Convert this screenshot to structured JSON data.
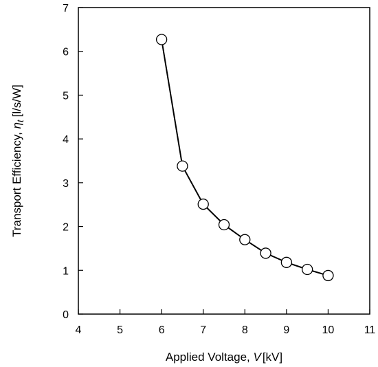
{
  "chart_data": {
    "type": "line",
    "title": "",
    "xlabel": {
      "prefix": "Applied Voltage, ",
      "symbol": "V",
      "unit": "[kV]"
    },
    "ylabel": {
      "prefix": "Transport Efficiency, ",
      "symbol": "η",
      "subscript": "t",
      "unit": "[l/s/W]"
    },
    "xlim": [
      4,
      11
    ],
    "ylim": [
      0,
      7
    ],
    "xticks": [
      "4",
      "5",
      "6",
      "7",
      "8",
      "9",
      "10",
      "11"
    ],
    "yticks": [
      "0",
      "1",
      "2",
      "3",
      "4",
      "5",
      "6",
      "7"
    ],
    "grid": false,
    "marker": "open-circle",
    "line_color": "#000000",
    "series": [
      {
        "x": [
          6.0,
          6.5,
          7.0,
          7.5,
          8.0,
          8.5,
          9.0,
          9.5,
          10.0
        ],
        "y": [
          6.27,
          3.38,
          2.51,
          2.04,
          1.7,
          1.39,
          1.18,
          1.02,
          0.88
        ]
      }
    ]
  }
}
